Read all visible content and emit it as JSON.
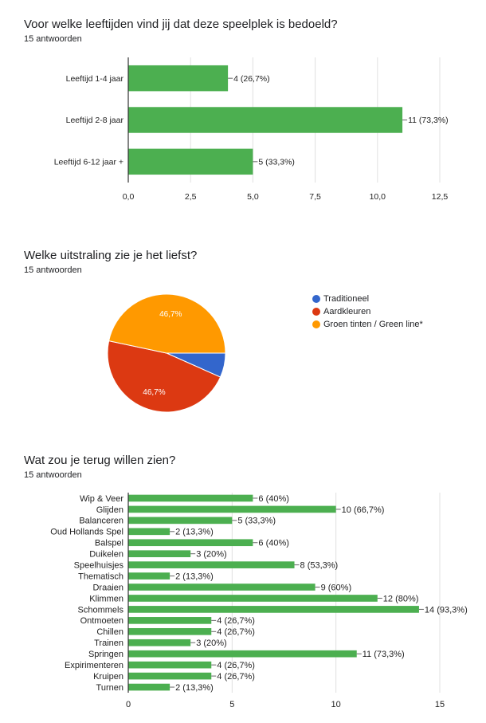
{
  "q1": {
    "title": "Voor welke leeftijden vind jij dat deze speelplek is bedoeld?",
    "responses": "15 antwoorden"
  },
  "q2": {
    "title": "Welke uitstraling zie je het liefst?",
    "responses": "15 antwoorden"
  },
  "q3": {
    "title": "Wat zou je terug willen zien?",
    "responses": "15 antwoorden"
  },
  "colors": {
    "bar": "#4caf50",
    "blue": "#3366cc",
    "red": "#dc3912",
    "orange": "#ff9900",
    "grid": "#e0e0e0",
    "axis": "#333333"
  },
  "chart_data": [
    {
      "type": "bar",
      "orientation": "horizontal",
      "categories": [
        "Leeftijd 1-4 jaar",
        "Leeftijd 2-8 jaar",
        "Leeftijd 6-12 jaar +"
      ],
      "values": [
        4,
        11,
        5
      ],
      "labels": [
        "4 (26,7%)",
        "11 (73,3%)",
        "5 (33,3%)"
      ],
      "xlim": [
        0,
        12.5
      ],
      "ticks": [
        "0,0",
        "2,5",
        "5,0",
        "7,5",
        "10,0",
        "12,5"
      ],
      "grid": true
    },
    {
      "type": "pie",
      "categories": [
        "Traditioneel",
        "Aardkleuren",
        "Groen tinten / Green line*"
      ],
      "values": [
        1,
        7,
        7
      ],
      "slice_labels": [
        "",
        "46,7%",
        "46,7%"
      ],
      "legend": "right"
    },
    {
      "type": "bar",
      "orientation": "horizontal",
      "categories": [
        "Wip & Veer",
        "Glijden",
        "Balanceren",
        "Oud Hollands Spel",
        "Balspel",
        "Duikelen",
        "Speelhuisjes",
        "Thematisch",
        "Draaien",
        "Klimmen",
        "Schommels",
        "Ontmoeten",
        "Chillen",
        "Trainen",
        "Springen",
        "Expirimenteren",
        "Kruipen",
        "Turnen"
      ],
      "values": [
        6,
        10,
        5,
        2,
        6,
        3,
        8,
        2,
        9,
        12,
        14,
        4,
        4,
        3,
        11,
        4,
        4,
        2
      ],
      "labels": [
        "6 (40%)",
        "10 (66,7%)",
        "5 (33,3%)",
        "2 (13,3%)",
        "6 (40%)",
        "3 (20%)",
        "8 (53,3%)",
        "2 (13,3%)",
        "9 (60%)",
        "12 (80%)",
        "14 (93,3%)",
        "4 (26,7%)",
        "4 (26,7%)",
        "3 (20%)",
        "11 (73,3%)",
        "4 (26,7%)",
        "4 (26,7%)",
        "2 (13,3%)"
      ],
      "xlim": [
        0,
        15
      ],
      "ticks": [
        "0",
        "5",
        "10",
        "15"
      ],
      "grid": true
    }
  ]
}
